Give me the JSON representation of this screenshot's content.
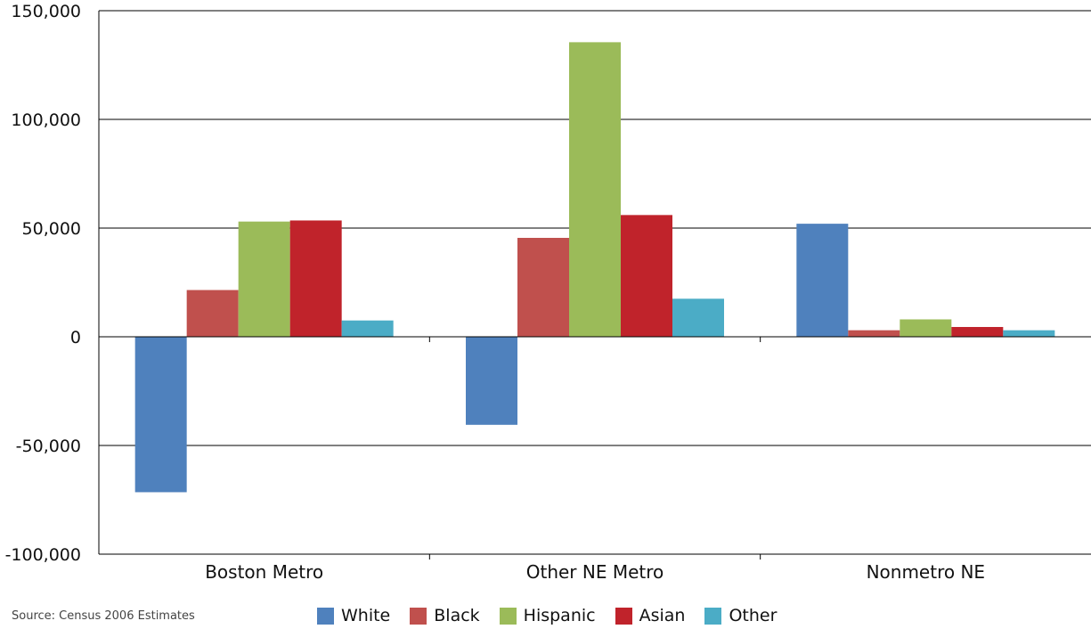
{
  "chart_data": {
    "type": "bar",
    "categories": [
      "Boston Metro",
      "Other NE Metro",
      "Nonmetro NE"
    ],
    "series": [
      {
        "name": "White",
        "color": "#4f81bd",
        "values": [
          -71500,
          -40500,
          52000
        ]
      },
      {
        "name": "Black",
        "color": "#c0504d",
        "values": [
          21500,
          45500,
          3000
        ]
      },
      {
        "name": "Hispanic",
        "color": "#9bbb59",
        "values": [
          53000,
          135500,
          8000
        ]
      },
      {
        "name": "Asian",
        "color": "#c0232b",
        "values": [
          53500,
          56000,
          4500
        ]
      },
      {
        "name": "Other",
        "color": "#4bacc6",
        "values": [
          7500,
          17500,
          3000
        ]
      }
    ],
    "ylim": [
      -100000,
      150000
    ],
    "yticks": [
      -100000,
      -50000,
      0,
      50000,
      100000,
      150000
    ],
    "ytick_labels": [
      "-100,000",
      "-50,000",
      "0",
      "50,000",
      "100,000",
      "150,000"
    ],
    "grid": true,
    "legend_position": "bottom",
    "source": "Source: Census 2006 Estimates"
  }
}
